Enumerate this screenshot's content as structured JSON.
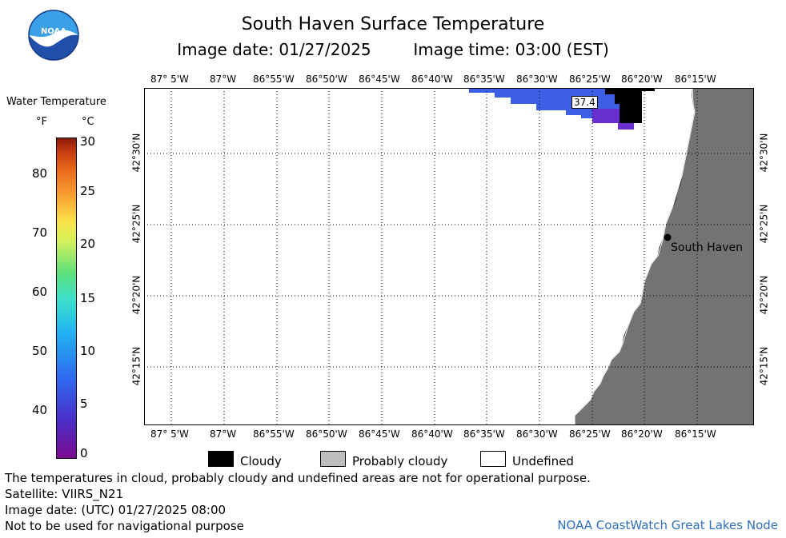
{
  "header": {
    "title": "South Haven Surface Temperature",
    "image_date_label": "Image date: 01/27/2025",
    "image_time_label": "Image time: 03:00 (EST)"
  },
  "logo": {
    "text": "NOAA"
  },
  "legend": {
    "title": "Water Temperature",
    "unit_f": "°F",
    "unit_c": "°C",
    "f_ticks": [
      "80",
      "70",
      "60",
      "50",
      "40"
    ],
    "c_ticks": [
      "30",
      "25",
      "20",
      "15",
      "10",
      "5",
      "0"
    ]
  },
  "map": {
    "lon_labels": [
      "87° 5'W",
      "87°W",
      "86°55'W",
      "86°50'W",
      "86°45'W",
      "86°40'W",
      "86°35'W",
      "86°30'W",
      "86°25'W",
      "86°20'W",
      "86°15'W"
    ],
    "lat_labels": [
      "42°30'N",
      "42°25'N",
      "42°20'N",
      "42°15'N"
    ],
    "city_label": "South Haven",
    "temp_label": "37.4",
    "colors": {
      "land": "#737373",
      "water_blue": "#3d5fe6",
      "water_purple": "#6a2fd0",
      "cloud": "#000000"
    }
  },
  "key": {
    "cloudy": "Cloudy",
    "probably_cloudy": "Probably cloudy",
    "undefined": "Undefined"
  },
  "notes": {
    "disclaimer": "The temperatures in cloud, probably cloudy and undefined areas are not for operational purpose.",
    "satellite": "Satellite: VIIRS_N21",
    "utc_date": "Image date: (UTC) 01/27/2025  08:00",
    "nav": "Not to be used for navigational purpose",
    "credit": "NOAA CoastWatch Great Lakes Node"
  }
}
